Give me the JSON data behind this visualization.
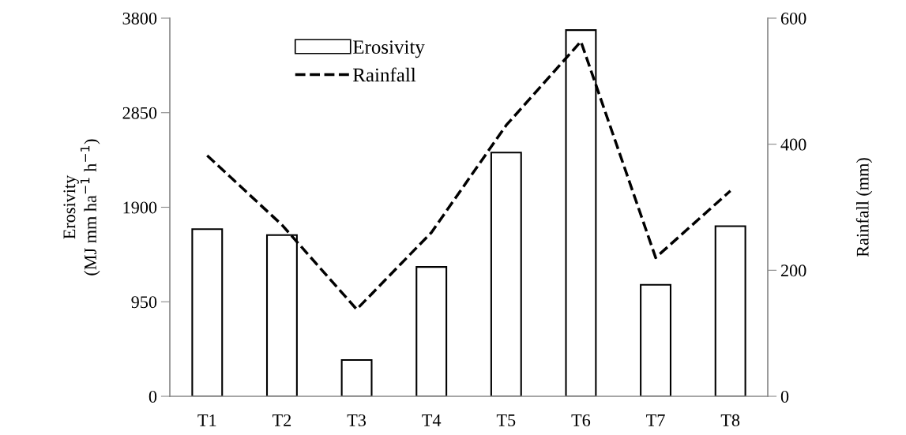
{
  "chart_data": {
    "type": "bar",
    "categories": [
      "T1",
      "T2",
      "T3",
      "T4",
      "T5",
      "T6",
      "T7",
      "T8"
    ],
    "series": [
      {
        "name": "Erosivity",
        "color": "#ffffff",
        "values": [
          1680,
          1620,
          365,
          1300,
          2450,
          3680,
          1120,
          1710
        ]
      },
      {
        "name": "Rainfall",
        "type": "line",
        "axis": "y2",
        "color": "#000000",
        "line_style": "dashed",
        "values": [
          382,
          272,
          138,
          260,
          430,
          563,
          220,
          326
        ]
      }
    ],
    "ylabel": "Erosivity\n(MJ mm ha$^{−1}$ h$^{−1}$)",
    "y2label": "Rainfall (mm)",
    "ylim": [
      0,
      3800
    ],
    "yticks": [
      0,
      950,
      1900,
      2850,
      3800
    ],
    "y2lim": [
      0,
      600
    ],
    "y2ticks": [
      0,
      200,
      400,
      600
    ],
    "legend": "top left",
    "grid": false
  }
}
